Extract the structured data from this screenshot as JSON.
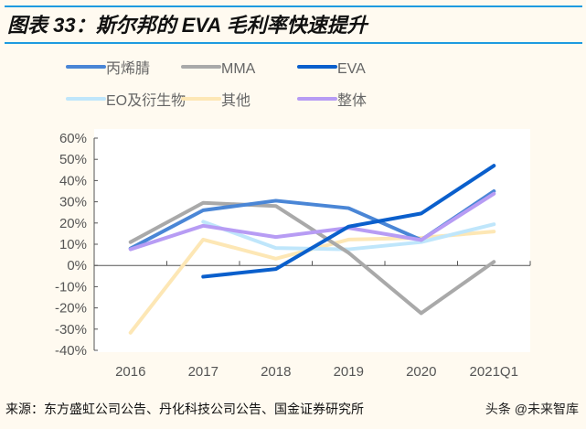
{
  "title": "图表 33：斯尔邦的 EVA 毛利率快速提升",
  "source": "来源：东方盛虹公司公告、丹化科技公司公告、国金证券研究所",
  "watermark": "头条 @未来智库",
  "chart_data": {
    "type": "line",
    "categories": [
      "2016",
      "2017",
      "2018",
      "2019",
      "2020",
      "2021Q1"
    ],
    "ylim": [
      -40,
      60
    ],
    "yticks": [
      "-40%",
      "-30%",
      "-20%",
      "-10%",
      "0%",
      "10%",
      "20%",
      "30%",
      "40%",
      "50%",
      "60%"
    ],
    "grid": false,
    "legend": "top",
    "series": [
      {
        "name": "丙烯腈",
        "color": "#4a86d6",
        "values": [
          8,
          26,
          30.5,
          27,
          12,
          35
        ]
      },
      {
        "name": "MMA",
        "color": "#a9a9a9",
        "values": [
          11,
          29.5,
          28,
          6,
          -22.5,
          1.7
        ]
      },
      {
        "name": "EVA",
        "color": "#0a5fcc",
        "values": [
          null,
          -5.3,
          -1.7,
          18.3,
          24.5,
          47
        ]
      },
      {
        "name": "EO及衍生物",
        "color": "#bfe6fb",
        "values": [
          null,
          20.6,
          8.2,
          7.6,
          11,
          19.4
        ]
      },
      {
        "name": "其他",
        "color": "#fde7b5",
        "values": [
          -31.7,
          12.2,
          3.2,
          12.2,
          13,
          16
        ]
      },
      {
        "name": "整体",
        "color": "#b79cf4",
        "values": [
          7.6,
          18.7,
          13.4,
          17.7,
          12,
          33.8
        ]
      }
    ]
  }
}
